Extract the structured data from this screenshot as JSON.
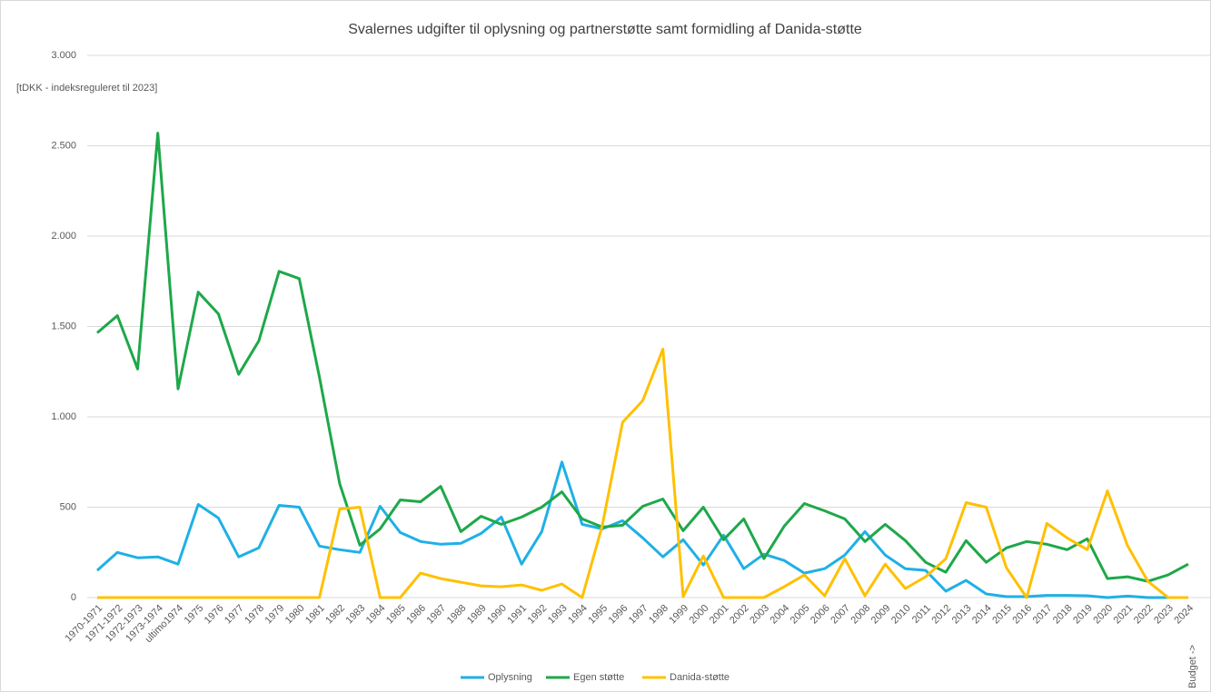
{
  "chart_data": {
    "type": "line",
    "title": "Svalernes udgifter til oplysning og partnerstøtte samt formidling af Danida-støtte",
    "y_axis_label": "[tDKK - indeksreguleret til 2023]",
    "annotation": "Budget ->",
    "categories": [
      "1970-1971",
      "1971-1972",
      "1972-1973",
      "1973-1974",
      "ultimo1974",
      "1975",
      "1976",
      "1977",
      "1978",
      "1979",
      "1980",
      "1981",
      "1982",
      "1983",
      "1984",
      "1985",
      "1986",
      "1987",
      "1988",
      "1989",
      "1990",
      "1991",
      "1992",
      "1993",
      "1994",
      "1995",
      "1996",
      "1997",
      "1998",
      "1999",
      "2000",
      "2001",
      "2002",
      "2003",
      "2004",
      "2005",
      "2006",
      "2007",
      "2008",
      "2009",
      "2010",
      "2011",
      "2012",
      "2013",
      "2014",
      "2015",
      "2016",
      "2017",
      "2018",
      "2019",
      "2020",
      "2021",
      "2022",
      "2023",
      "2024"
    ],
    "series": [
      {
        "name": "Oplysning",
        "color": "#1fb0e6",
        "values": [
          150,
          250,
          220,
          225,
          185,
          515,
          440,
          225,
          275,
          510,
          500,
          285,
          265,
          250,
          505,
          360,
          310,
          295,
          300,
          355,
          445,
          185,
          365,
          750,
          405,
          380,
          425,
          330,
          225,
          320,
          180,
          345,
          160,
          240,
          205,
          135,
          160,
          235,
          365,
          235,
          160,
          150,
          35,
          95,
          20,
          5,
          5,
          12,
          12,
          10,
          0,
          8,
          0,
          0,
          null
        ]
      },
      {
        "name": "Egen støtte",
        "color": "#1ea84a",
        "values": [
          1465,
          1560,
          1265,
          2570,
          1155,
          1690,
          1570,
          1235,
          1420,
          1805,
          1765,
          1220,
          630,
          290,
          380,
          540,
          530,
          615,
          365,
          450,
          405,
          445,
          500,
          585,
          435,
          390,
          400,
          505,
          545,
          370,
          500,
          320,
          435,
          215,
          395,
          520,
          480,
          435,
          310,
          405,
          315,
          195,
          140,
          315,
          195,
          275,
          310,
          295,
          265,
          325,
          105,
          115,
          90,
          125,
          185
        ]
      },
      {
        "name": "Danida-støtte",
        "color": "#ffc000",
        "values": [
          0,
          0,
          0,
          0,
          0,
          0,
          0,
          0,
          0,
          0,
          0,
          0,
          490,
          500,
          0,
          0,
          135,
          105,
          85,
          65,
          60,
          70,
          40,
          75,
          0,
          400,
          970,
          1090,
          1375,
          5,
          230,
          0,
          0,
          0,
          60,
          125,
          10,
          215,
          10,
          185,
          50,
          115,
          215,
          525,
          500,
          165,
          0,
          410,
          330,
          265,
          590,
          285,
          90,
          0,
          0
        ]
      }
    ],
    "ylim": [
      0,
      3000
    ],
    "yticks": [
      0,
      500,
      {
        "value": 1000,
        "label": "1.000"
      },
      {
        "value": 1500,
        "label": "1.500"
      },
      {
        "value": 2000,
        "label": "2.000"
      },
      {
        "value": 2500,
        "label": "2.500"
      },
      {
        "value": 3000,
        "label": "3.000"
      }
    ],
    "grid": true,
    "legend": "bottom"
  }
}
